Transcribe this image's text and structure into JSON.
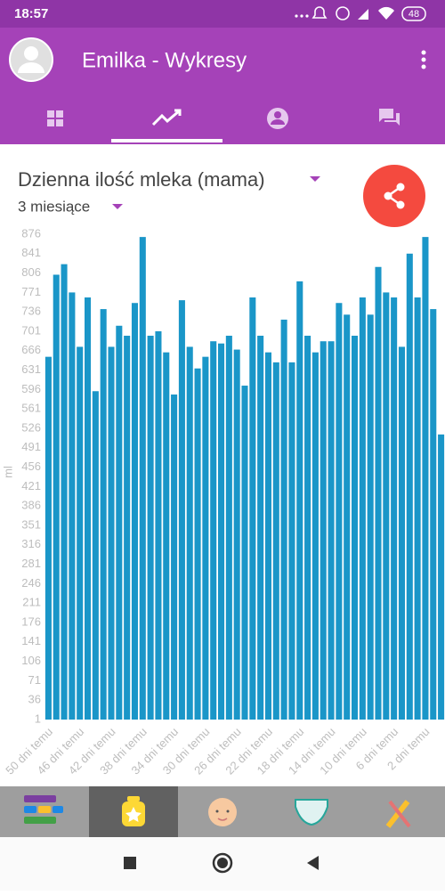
{
  "status": {
    "time": "18:57",
    "battery": "48"
  },
  "app_bar": {
    "title": "Emilka - Wykresy"
  },
  "chart_data": {
    "type": "bar",
    "title": "Dzienna ilość mleka (mama)",
    "subtitle": "3 miesiące",
    "y_label": "ml",
    "color": "#1a96c8",
    "categories": [
      "50 dni temu",
      null,
      null,
      null,
      "46 dni temu",
      null,
      null,
      null,
      "42 dni temu",
      null,
      null,
      null,
      "38 dni temu",
      null,
      null,
      null,
      "34 dni temu",
      null,
      null,
      null,
      "30 dni temu",
      null,
      null,
      null,
      "26 dni temu",
      null,
      null,
      null,
      "22 dni temu",
      null,
      null,
      null,
      "18 dni temu",
      null,
      null,
      null,
      "14 dni temu",
      null,
      null,
      null,
      "10 dni temu",
      null,
      null,
      null,
      "6 dni temu",
      null,
      null,
      null,
      "2 dni temu",
      null,
      null
    ],
    "values": [
      655,
      803,
      822,
      771,
      673,
      762,
      593,
      741,
      673,
      711,
      693,
      752,
      871,
      693,
      701,
      663,
      587,
      757,
      673,
      634,
      655,
      683,
      679,
      693,
      668,
      603,
      762,
      693,
      663,
      645,
      722,
      645,
      791,
      693,
      663,
      683,
      683,
      752,
      731,
      693,
      762,
      731,
      817,
      771,
      762,
      673,
      841,
      762,
      871,
      741,
      515
    ],
    "ylim": [
      1,
      876
    ],
    "yticks": [
      1,
      36,
      71,
      106,
      141,
      176,
      211,
      246,
      281,
      316,
      351,
      386,
      421,
      456,
      491,
      526,
      561,
      596,
      631,
      666,
      701,
      736,
      771,
      806,
      841,
      876
    ],
    "grid": false
  }
}
